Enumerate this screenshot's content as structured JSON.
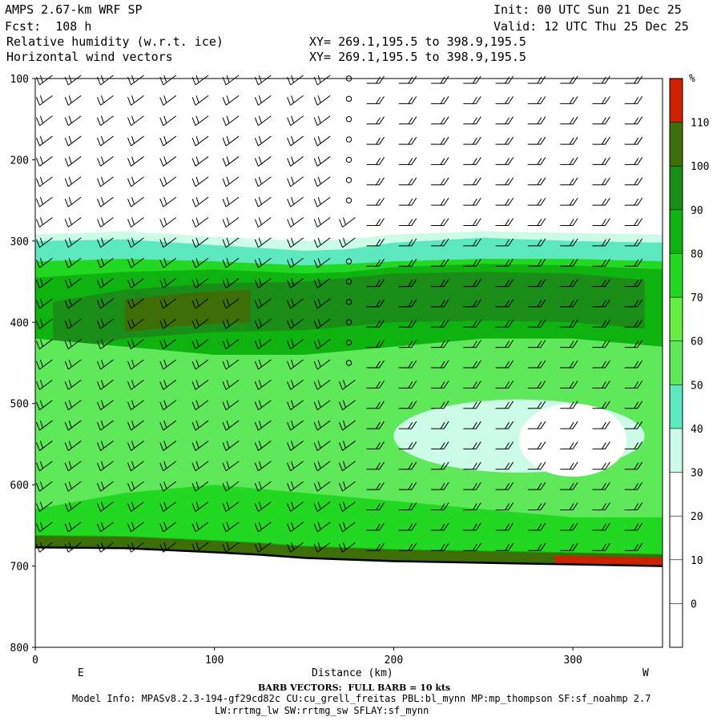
{
  "header": {
    "model_title": "AMPS 2.67-km WRF SP",
    "forecast": "Fcst:  108 h",
    "field1": "Relative humidity (w.r.t. ice)",
    "field2": "Horizontal wind vectors",
    "xy1": "XY= 269.1,195.5 to 398.9,195.5",
    "xy2": "XY= 269.1,195.5 to 398.9,195.5",
    "init": "Init: 00 UTC Sun 21 Dec 25",
    "valid": "Valid: 12 UTC Thu 25 Dec 25"
  },
  "footer": {
    "barb_note": "BARB VECTORS:  FULL BARB = 10 kts",
    "model_info": "Model Info: MPASv8.2.3-194-gf29cd82c CU:cu_grell_freitas PBL:bl_mynn MP:mp_thompson SF:sf_noahmp 2.7",
    "model_info2": "LW:rrtmg_lw SW:rrtmg_sw SFLAY:sf_mynn"
  },
  "chart_data": {
    "type": "heatmap",
    "title": "Relative humidity (w.r.t. ice)",
    "xlabel": "Distance (km)",
    "ylabel": "",
    "xlim": [
      0,
      350
    ],
    "ylim": [
      800,
      100
    ],
    "y_inverted": true,
    "x_ticks": [
      "0",
      "100",
      "200",
      "300"
    ],
    "y_ticks": [
      "100",
      "200",
      "300",
      "400",
      "500",
      "600",
      "700",
      "800"
    ],
    "x_end_labels": {
      "left": "E",
      "right": "W"
    },
    "colorbar": {
      "unit": "%",
      "levels": [
        "110",
        "100",
        "90",
        "80",
        "70",
        "60",
        "50",
        "40",
        "30",
        "20",
        "10",
        "0"
      ],
      "colors": [
        "#cc2200",
        "#3d6e08",
        "#1a8c18",
        "#0fb30f",
        "#22d822",
        "#66ee44",
        "#5ee85a",
        "#5ee8c0",
        "#ccfce8",
        "#ffffff",
        "#ffffff",
        "#ffffff",
        "#ffffff"
      ]
    },
    "terrain_pressure": [
      [
        0,
        677
      ],
      [
        50,
        678
      ],
      [
        100,
        683
      ],
      [
        125,
        686
      ],
      [
        150,
        690
      ],
      [
        175,
        692
      ],
      [
        200,
        694
      ],
      [
        250,
        696
      ],
      [
        300,
        698
      ],
      [
        350,
        700
      ]
    ],
    "layers": [
      {
        "name": "rh_30_40",
        "color": "#ccfce8",
        "top": [
          [
            0,
            292
          ],
          [
            50,
            288
          ],
          [
            100,
            295
          ],
          [
            150,
            300
          ],
          [
            175,
            298
          ],
          [
            200,
            292
          ],
          [
            250,
            288
          ],
          [
            300,
            290
          ],
          [
            350,
            292
          ]
        ]
      },
      {
        "name": "rh_40_50",
        "color": "#5ee8c0",
        "top": [
          [
            0,
            300
          ],
          [
            50,
            298
          ],
          [
            100,
            305
          ],
          [
            150,
            312
          ],
          [
            175,
            310
          ],
          [
            200,
            302
          ],
          [
            250,
            296
          ],
          [
            300,
            300
          ],
          [
            350,
            302
          ]
        ]
      },
      {
        "name": "rh_60_70",
        "color": "#22d822",
        "top": [
          [
            0,
            325
          ],
          [
            50,
            322
          ],
          [
            100,
            325
          ],
          [
            150,
            330
          ],
          [
            175,
            328
          ],
          [
            200,
            325
          ],
          [
            250,
            322
          ],
          [
            300,
            322
          ],
          [
            350,
            325
          ]
        ]
      },
      {
        "name": "rh_70_80",
        "color": "#0fb30f",
        "top": [
          [
            0,
            345
          ],
          [
            50,
            338
          ],
          [
            100,
            335
          ],
          [
            150,
            340
          ],
          [
            175,
            338
          ],
          [
            200,
            332
          ],
          [
            250,
            328
          ],
          [
            300,
            330
          ],
          [
            350,
            335
          ]
        ]
      },
      {
        "name": "rh_80_90",
        "color": "#1a8c18",
        "top": [
          [
            10,
            375
          ],
          [
            50,
            360
          ],
          [
            100,
            352
          ],
          [
            150,
            350
          ],
          [
            200,
            340
          ],
          [
            250,
            338
          ],
          [
            300,
            340
          ],
          [
            340,
            348
          ]
        ]
      },
      {
        "name": "rh_90_100",
        "color": "#3d6e08",
        "top": [
          [
            50,
            372
          ],
          [
            80,
            365
          ],
          [
            100,
            362
          ],
          [
            120,
            360
          ]
        ]
      }
    ],
    "dry_patches": [
      {
        "name": "rh_30_40_lower",
        "color": "#ccfce8",
        "center": [
          270,
          540
        ],
        "extent": [
          70,
          45
        ]
      },
      {
        "name": "rh_under_30",
        "color": "#ffffff",
        "center": [
          300,
          545
        ],
        "extent": [
          30,
          45
        ]
      }
    ],
    "surface_bands": [
      {
        "name": "rh_90_100_surface",
        "color": "#3d6e08",
        "range": [
          0,
          350
        ]
      },
      {
        "name": "rh_over_110_surface",
        "color": "#cc2200",
        "range": [
          290,
          350
        ]
      }
    ],
    "wind_barbs": {
      "x_positions": [
        6,
        22,
        40,
        57,
        75,
        93,
        110,
        128,
        146,
        161,
        175,
        192,
        210,
        228,
        246,
        264,
        282,
        300,
        318,
        336
      ],
      "levels": [
        100,
        125,
        150,
        175,
        200,
        225,
        250,
        275,
        300,
        325,
        350,
        375,
        400,
        425,
        450,
        475,
        500,
        525,
        550,
        575,
        600,
        625,
        650,
        675
      ],
      "calm_column_x": 175
    }
  }
}
